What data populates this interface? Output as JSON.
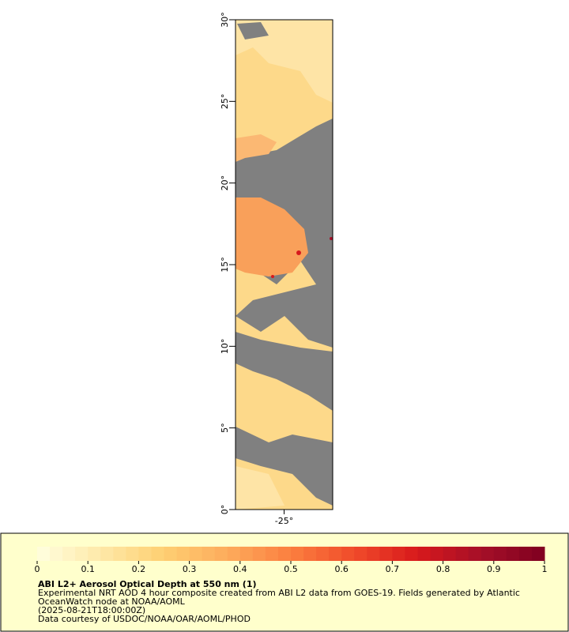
{
  "map": {
    "lat_range": [
      0,
      30
    ],
    "lon_range": [
      -28,
      -22
    ],
    "lat_ticks": [
      {
        "value": 0,
        "label": "0°"
      },
      {
        "value": 5,
        "label": "5°"
      },
      {
        "value": 10,
        "label": "10°"
      },
      {
        "value": 15,
        "label": "15°"
      },
      {
        "value": 20,
        "label": "20°"
      },
      {
        "value": 25,
        "label": "25°"
      },
      {
        "value": 30,
        "label": "30°"
      }
    ],
    "lon_ticks": [
      {
        "value": -25,
        "label": "-25°"
      }
    ]
  },
  "colorbar": {
    "range": [
      0,
      1
    ],
    "ticks": [
      0,
      0.1,
      0.2,
      0.3,
      0.4,
      0.5,
      0.6,
      0.7,
      0.8,
      0.9,
      1
    ],
    "colors": [
      "#ffffe0",
      "#fee9a8",
      "#fecf72",
      "#fdab5c",
      "#fb7f3f",
      "#f04b2a",
      "#d7191c",
      "#a50f28",
      "#7f0020"
    ]
  },
  "caption": {
    "title": "ABI L2+ Aerosol Optical Depth at 550 nm (1)",
    "lines": [
      "Experimental NRT AOD 4 hour composite created from ABI L2 data from GOES-19. Fields generated by Atlantic",
      "OceanWatch node at NOAA/AOML",
      "(2025-08-21T18:00:00Z)",
      "Data courtesy of USDOC/NOAA/OAR/AOML/PHOD"
    ]
  }
}
